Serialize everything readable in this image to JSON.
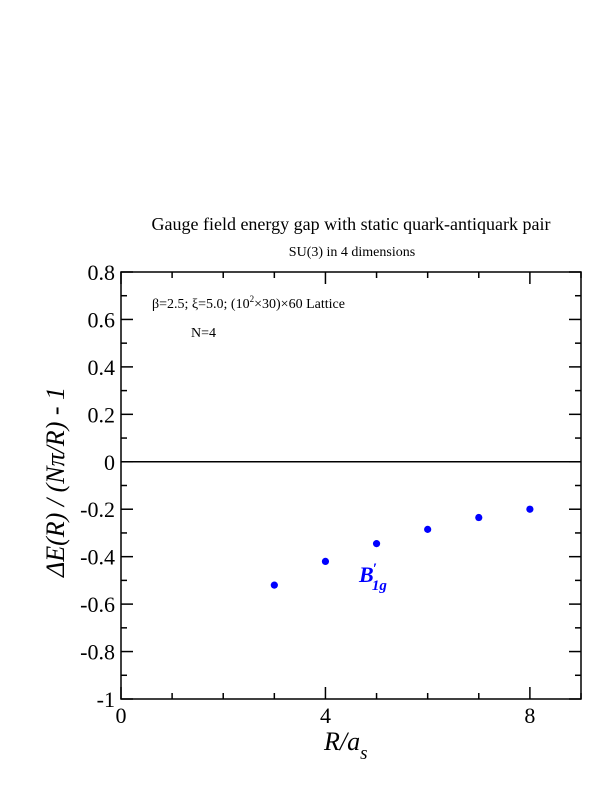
{
  "chart_data": {
    "type": "scatter",
    "title": "Gauge field energy gap with static quark-antiquark pair",
    "subtitle": "SU(3) in 4 dimensions",
    "xlabel": {
      "main": "R/a",
      "sub": "s"
    },
    "ylabel": "ΔE(R) / (Nπ/R) - 1",
    "xlim": [
      0,
      9
    ],
    "ylim": [
      -1,
      0.8
    ],
    "x_ticks": [
      0,
      4,
      8
    ],
    "x_tick_labels": [
      "0",
      "4",
      "8"
    ],
    "y_ticks": [
      -1,
      -0.8,
      -0.6,
      -0.4,
      -0.2,
      0,
      0.2,
      0.4,
      0.6,
      0.8
    ],
    "y_tick_labels": [
      "-1",
      "-0.8",
      "-0.6",
      "-0.4",
      "-0.2",
      "0",
      "0.2",
      "0.4",
      "0.6",
      "0.8"
    ],
    "zero_line": true,
    "grid": false,
    "annotations": {
      "lattice": "β=2.5;  ξ=5.0; (10",
      "lattice_sup": "2",
      "lattice_tail": "×30)×60 Lattice",
      "n": "N=4"
    },
    "series_label": {
      "main": "B",
      "prime": "′",
      "sub": "1g",
      "color": "#0000ff"
    },
    "series": [
      {
        "color": "#0000ff",
        "x": [
          3,
          4,
          5,
          6,
          7,
          8
        ],
        "y": [
          -0.52,
          -0.42,
          -0.345,
          -0.285,
          -0.235,
          -0.2
        ]
      }
    ]
  }
}
